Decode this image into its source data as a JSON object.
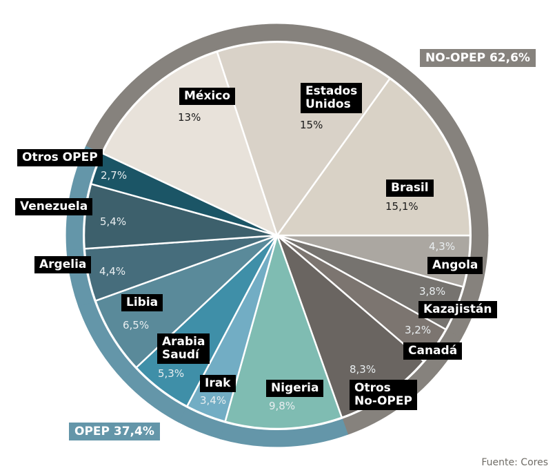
{
  "chart_data": {
    "type": "pie",
    "title": "",
    "unit": "%",
    "start_angle_deg": 0,
    "direction": "clockwise",
    "slices": [
      {
        "label": "Angola",
        "value": 4.3,
        "display": "4,3%",
        "group": "NO-OPEP",
        "color": "#aba7a1"
      },
      {
        "label": "Kazajistán",
        "value": 3.8,
        "display": "3,8%",
        "group": "NO-OPEP",
        "color": "#76736f"
      },
      {
        "label": "Canadá",
        "value": 3.2,
        "display": "3,2%",
        "group": "NO-OPEP",
        "color": "#7c7570"
      },
      {
        "label": "Otros No-OPEP",
        "value": 8.3,
        "display": "8,3%",
        "group": "NO-OPEP",
        "color": "#6a6561"
      },
      {
        "label": "Nigeria",
        "value": 9.8,
        "display": "9,8%",
        "group": "OPEP",
        "color": "#7fbcb2"
      },
      {
        "label": "Irak",
        "value": 3.4,
        "display": "3,4%",
        "group": "OPEP",
        "color": "#72adc4"
      },
      {
        "label": "Arabia Saudí",
        "value": 5.3,
        "display": "5,3%",
        "group": "OPEP",
        "color": "#3f8fa8"
      },
      {
        "label": "Libia",
        "value": 6.5,
        "display": "6,5%",
        "group": "OPEP",
        "color": "#5a8a9a"
      },
      {
        "label": "Argelia",
        "value": 4.4,
        "display": "4,4%",
        "group": "OPEP",
        "color": "#466d7c"
      },
      {
        "label": "Venezuela",
        "value": 5.4,
        "display": "5,4%",
        "group": "OPEP",
        "color": "#3d606c"
      },
      {
        "label": "Otros OPEP",
        "value": 2.7,
        "display": "2,7%",
        "group": "OPEP",
        "color": "#1b5566"
      },
      {
        "label": "México",
        "value": 13,
        "display": "13%",
        "group": "NO-OPEP",
        "color": "#e8e2da"
      },
      {
        "label": "Estados Unidos",
        "value": 15,
        "display": "15%",
        "group": "NO-OPEP",
        "color": "#d9d2c8"
      },
      {
        "label": "Brasil",
        "value": 15.1,
        "display": "15,1%",
        "group": "NO-OPEP",
        "color": "#d9d2c6"
      }
    ],
    "groups": [
      {
        "name": "NO-OPEP",
        "label": "NO-OPEP 62,6%",
        "value": 62.6,
        "color": "#86827d"
      },
      {
        "name": "OPEP",
        "label": "OPEP 37,4%",
        "value": 37.4,
        "color": "#6496a9"
      }
    ],
    "legend": "none",
    "source": "Fuente: Cores"
  },
  "labels": {
    "angola": "Angola",
    "kazajistan": "Kazajistán",
    "canada": "Canadá",
    "otros_no_opep": "Otros\nNo-OPEP",
    "nigeria": "Nigeria",
    "irak": "Irak",
    "arabia": "Arabia\nSaudí",
    "libia": "Libia",
    "argelia": "Argelia",
    "venezuela": "Venezuela",
    "otros_opep": "Otros OPEP",
    "mexico": "México",
    "eeuu": "Estados\nUnidos",
    "brasil": "Brasil"
  },
  "pcts": {
    "angola": "4,3%",
    "kazajistan": "3,8%",
    "canada": "3,2%",
    "otros_no_opep": "8,3%",
    "nigeria": "9,8%",
    "irak": "3,4%",
    "arabia": "5,3%",
    "libia": "6,5%",
    "argelia": "4,4%",
    "venezuela": "5,4%",
    "otros_opep": "2,7%",
    "mexico": "13%",
    "eeuu": "15%",
    "brasil": "15,1%"
  },
  "group_labels": {
    "no_opep": "NO-OPEP 62,6%",
    "opep": "OPEP 37,4%"
  },
  "source": "Fuente: Cores"
}
